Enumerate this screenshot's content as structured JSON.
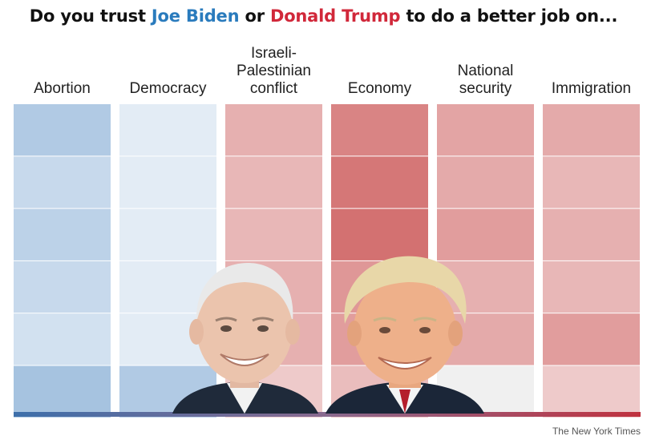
{
  "title": {
    "prefix": "Do you trust ",
    "candidate_a": "Joe Biden",
    "middle": " or ",
    "candidate_b": "Donald Trump",
    "suffix": " to do a better job on..."
  },
  "credit": "The New York Times",
  "colors": {
    "biden": "#2a7bbd",
    "trump": "#d1283a",
    "neutral": "#f0f0f0"
  },
  "photos": {
    "left": "joe-biden-photo",
    "right": "donald-trump-photo"
  },
  "chart_data": {
    "type": "heatmap",
    "categories": [
      "Abortion",
      "Democracy",
      "Israeli-\nPalestinian\nconflict",
      "Economy",
      "National\nsecurity",
      "Immigration"
    ],
    "rows": 6,
    "lean_scale": "negative = Biden (blue), positive = Trump (red)",
    "values": [
      [
        -0.55,
        -0.1,
        0.4,
        0.75,
        0.5,
        0.45
      ],
      [
        -0.35,
        -0.1,
        0.35,
        0.85,
        0.45,
        0.35
      ],
      [
        -0.45,
        -0.1,
        0.35,
        0.9,
        0.55,
        0.4
      ],
      [
        -0.35,
        -0.1,
        0.4,
        0.6,
        0.4,
        0.35
      ],
      [
        -0.25,
        -0.1,
        0.4,
        0.55,
        0.45,
        0.55
      ],
      [
        -0.65,
        -0.55,
        0.2,
        0.3,
        0.0,
        0.2
      ]
    ]
  }
}
